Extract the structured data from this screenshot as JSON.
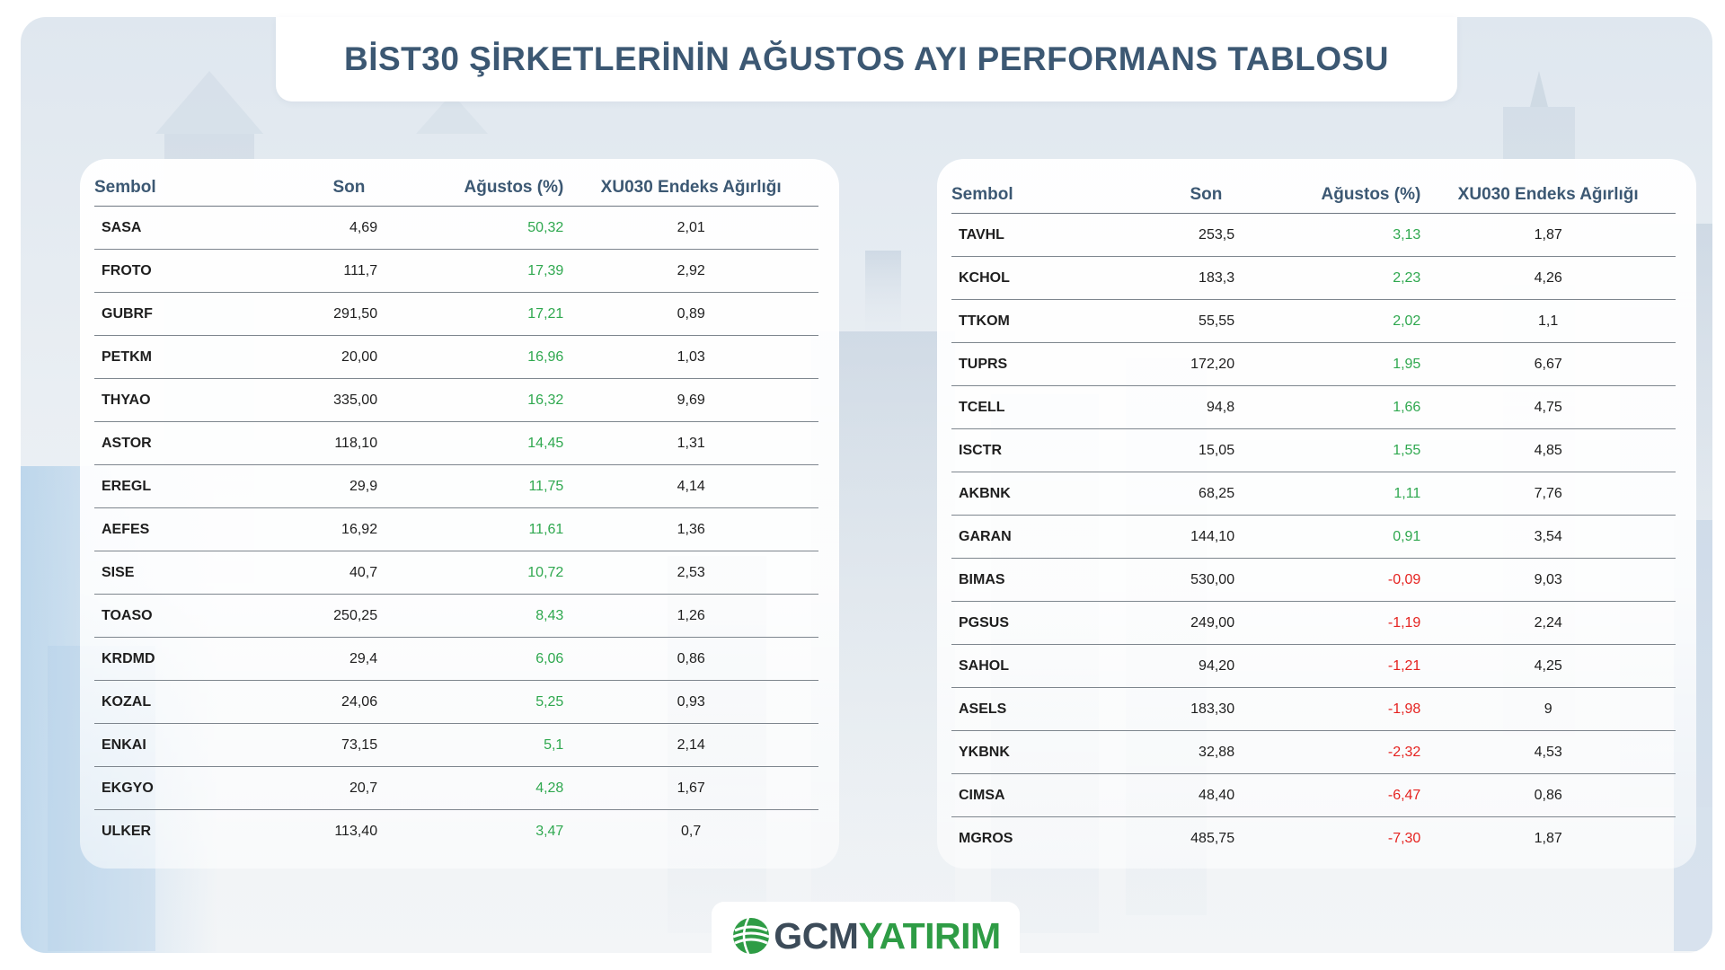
{
  "title": "BİST30 ŞİRKETLERİNİN AĞUSTOS AYI PERFORMANS TABLOSU",
  "columns": {
    "symbol": "Sembol",
    "last": "Son",
    "august": "Ağustos (%)",
    "weight": "XU030 Endeks Ağırlığı"
  },
  "colors": {
    "heading": "#3c5873",
    "positive": "#2fa84f",
    "negative": "#e52320",
    "logo_dark": "#3c4b59",
    "logo_green": "#2e9c45"
  },
  "left_table": [
    {
      "symbol": "SASA",
      "last": "4,69",
      "august": "50,32",
      "weight": "2,01",
      "trend": "pos"
    },
    {
      "symbol": "FROTO",
      "last": "111,7",
      "august": "17,39",
      "weight": "2,92",
      "trend": "pos"
    },
    {
      "symbol": "GUBRF",
      "last": "291,50",
      "august": "17,21",
      "weight": "0,89",
      "trend": "pos"
    },
    {
      "symbol": "PETKM",
      "last": "20,00",
      "august": "16,96",
      "weight": "1,03",
      "trend": "pos"
    },
    {
      "symbol": "THYAO",
      "last": "335,00",
      "august": "16,32",
      "weight": "9,69",
      "trend": "pos"
    },
    {
      "symbol": "ASTOR",
      "last": "118,10",
      "august": "14,45",
      "weight": "1,31",
      "trend": "pos"
    },
    {
      "symbol": "EREGL",
      "last": "29,9",
      "august": "11,75",
      "weight": "4,14",
      "trend": "pos"
    },
    {
      "symbol": "AEFES",
      "last": "16,92",
      "august": "11,61",
      "weight": "1,36",
      "trend": "pos"
    },
    {
      "symbol": "SISE",
      "last": "40,7",
      "august": "10,72",
      "weight": "2,53",
      "trend": "pos"
    },
    {
      "symbol": "TOASO",
      "last": "250,25",
      "august": "8,43",
      "weight": "1,26",
      "trend": "pos"
    },
    {
      "symbol": "KRDMD",
      "last": "29,4",
      "august": "6,06",
      "weight": "0,86",
      "trend": "pos"
    },
    {
      "symbol": "KOZAL",
      "last": "24,06",
      "august": "5,25",
      "weight": "0,93",
      "trend": "pos"
    },
    {
      "symbol": "ENKAI",
      "last": "73,15",
      "august": "5,1",
      "weight": "2,14",
      "trend": "pos"
    },
    {
      "symbol": "EKGYO",
      "last": "20,7",
      "august": "4,28",
      "weight": "1,67",
      "trend": "pos"
    },
    {
      "symbol": "ULKER",
      "last": "113,40",
      "august": "3,47",
      "weight": "0,7",
      "trend": "pos"
    }
  ],
  "right_table": [
    {
      "symbol": "TAVHL",
      "last": "253,5",
      "august": "3,13",
      "weight": "1,87",
      "trend": "pos"
    },
    {
      "symbol": "KCHOL",
      "last": "183,3",
      "august": "2,23",
      "weight": "4,26",
      "trend": "pos"
    },
    {
      "symbol": "TTKOM",
      "last": "55,55",
      "august": "2,02",
      "weight": "1,1",
      "trend": "pos"
    },
    {
      "symbol": "TUPRS",
      "last": "172,20",
      "august": "1,95",
      "weight": "6,67",
      "trend": "pos"
    },
    {
      "symbol": "TCELL",
      "last": "94,8",
      "august": "1,66",
      "weight": "4,75",
      "trend": "pos"
    },
    {
      "symbol": "ISCTR",
      "last": "15,05",
      "august": "1,55",
      "weight": "4,85",
      "trend": "pos"
    },
    {
      "symbol": "AKBNK",
      "last": "68,25",
      "august": "1,11",
      "weight": "7,76",
      "trend": "pos"
    },
    {
      "symbol": "GARAN",
      "last": "144,10",
      "august": "0,91",
      "weight": "3,54",
      "trend": "pos"
    },
    {
      "symbol": "BIMAS",
      "last": "530,00",
      "august": "-0,09",
      "weight": "9,03",
      "trend": "neg"
    },
    {
      "symbol": "PGSUS",
      "last": "249,00",
      "august": "-1,19",
      "weight": "2,24",
      "trend": "neg"
    },
    {
      "symbol": "SAHOL",
      "last": "94,20",
      "august": "-1,21",
      "weight": "4,25",
      "trend": "neg"
    },
    {
      "symbol": "ASELS",
      "last": "183,30",
      "august": "-1,98",
      "weight": "9",
      "trend": "neg"
    },
    {
      "symbol": "YKBNK",
      "last": "32,88",
      "august": "-2,32",
      "weight": "4,53",
      "trend": "neg"
    },
    {
      "symbol": "CIMSA",
      "last": "48,40",
      "august": "-6,47",
      "weight": "0,86",
      "trend": "neg"
    },
    {
      "symbol": "MGROS",
      "last": "485,75",
      "august": "-7,30",
      "weight": "1,87",
      "trend": "neg"
    }
  ],
  "logo": {
    "part1": "GCM",
    "part2": "YATIRIM",
    "icon": "globe-icon"
  }
}
